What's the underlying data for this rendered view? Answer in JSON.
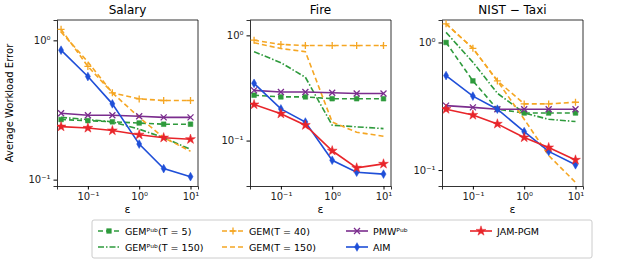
{
  "chart_data": [
    {
      "type": "line",
      "title": "Salary",
      "x_label": "ε",
      "y_label": "Average Workload Error",
      "log": true,
      "legend": "bottom",
      "x": [
        0.03,
        0.1,
        0.3,
        1,
        3,
        10
      ],
      "xlim": [
        0.025,
        14
      ],
      "ylim": [
        0.09,
        1.4
      ],
      "xticks": [
        {
          "value": 0.1,
          "label": "10⁻¹"
        },
        {
          "value": 1,
          "label": "10⁰"
        },
        {
          "value": 10,
          "label": "10¹"
        }
      ],
      "yticks": [
        {
          "value": 0.1,
          "label": "10⁻¹"
        },
        {
          "value": 1,
          "label": "10⁰"
        }
      ],
      "series": [
        {
          "name": "GEMᴾᵘᵇ(T = 5)",
          "color": "#2e9a3c",
          "marker": "square",
          "line_style": "dashed",
          "values": [
            0.27,
            0.265,
            0.26,
            0.255,
            0.25,
            0.25
          ]
        },
        {
          "name": "GEMᴾᵘᵇ(T = 150)",
          "color": "#2e9a3c",
          "marker": "none",
          "line_style": "dashdot",
          "values": [
            0.28,
            0.27,
            0.26,
            0.23,
            0.2,
            0.165
          ]
        },
        {
          "name": "GEM(T = 40)",
          "color": "#f5a623",
          "marker": "plus",
          "line_style": "dashed",
          "values": [
            1.2,
            0.65,
            0.42,
            0.38,
            0.37,
            0.37
          ]
        },
        {
          "name": "GEM(T = 150)",
          "color": "#f5a623",
          "marker": "none",
          "line_style": "dashed",
          "values": [
            1.15,
            0.7,
            0.42,
            0.28,
            0.2,
            0.16
          ]
        },
        {
          "name": "PMWᴾᵘᵇ",
          "color": "#7b2d8e",
          "marker": "x",
          "line_style": "solid",
          "values": [
            0.3,
            0.29,
            0.29,
            0.285,
            0.28,
            0.28
          ]
        },
        {
          "name": "AIM",
          "color": "#1f4fd8",
          "marker": "diamond",
          "line_style": "solid",
          "values": [
            0.85,
            0.55,
            0.35,
            0.18,
            0.12,
            0.105
          ]
        },
        {
          "name": "JAM-PGM",
          "color": "#e8252a",
          "marker": "star",
          "line_style": "solid",
          "values": [
            0.24,
            0.235,
            0.225,
            0.21,
            0.2,
            0.195
          ]
        }
      ]
    },
    {
      "type": "line",
      "title": "Fire",
      "x_label": "ε",
      "log": true,
      "x": [
        0.03,
        0.1,
        0.3,
        1,
        3,
        10
      ],
      "xlim": [
        0.025,
        14
      ],
      "ylim": [
        0.037,
        1.4
      ],
      "xticks": [
        {
          "value": 0.1,
          "label": "10⁻¹"
        },
        {
          "value": 1,
          "label": "10⁰"
        },
        {
          "value": 10,
          "label": "10¹"
        }
      ],
      "yticks": [
        {
          "value": 0.1,
          "label": "10⁻¹"
        },
        {
          "value": 1,
          "label": "10⁰"
        }
      ],
      "series": [
        {
          "name": "GEMᴾᵘᵇ(T = 5)",
          "color": "#2e9a3c",
          "marker": "square",
          "line_style": "dashed",
          "values": [
            0.27,
            0.26,
            0.26,
            0.25,
            0.25,
            0.25
          ]
        },
        {
          "name": "GEMᴾᵘᵇ(T = 150)",
          "color": "#2e9a3c",
          "marker": "none",
          "line_style": "dashdot",
          "values": [
            0.7,
            0.55,
            0.4,
            0.14,
            0.135,
            0.13
          ]
        },
        {
          "name": "GEM(T = 40)",
          "color": "#f5a623",
          "marker": "plus",
          "line_style": "dashed",
          "values": [
            0.9,
            0.82,
            0.8,
            0.8,
            0.8,
            0.8
          ]
        },
        {
          "name": "GEM(T = 150)",
          "color": "#f5a623",
          "marker": "none",
          "line_style": "dashed",
          "values": [
            0.85,
            0.75,
            0.7,
            0.15,
            0.12,
            0.11
          ]
        },
        {
          "name": "PMWᴾᵘᵇ",
          "color": "#7b2d8e",
          "marker": "x",
          "line_style": "solid",
          "values": [
            0.3,
            0.29,
            0.29,
            0.285,
            0.28,
            0.28
          ]
        },
        {
          "name": "AIM",
          "color": "#1f4fd8",
          "marker": "diamond",
          "line_style": "solid",
          "values": [
            0.35,
            0.2,
            0.15,
            0.065,
            0.05,
            0.048
          ]
        },
        {
          "name": "JAM-PGM",
          "color": "#e8252a",
          "marker": "star",
          "line_style": "solid",
          "values": [
            0.22,
            0.18,
            0.14,
            0.08,
            0.055,
            0.06
          ]
        }
      ]
    },
    {
      "type": "line",
      "title": "NIST − Taxi",
      "x_label": "ε",
      "log": true,
      "x": [
        0.03,
        0.1,
        0.3,
        1,
        3,
        10
      ],
      "xlim": [
        0.025,
        14
      ],
      "ylim": [
        0.075,
        1.5
      ],
      "xticks": [
        {
          "value": 0.1,
          "label": "10⁻¹"
        },
        {
          "value": 1,
          "label": "10⁰"
        },
        {
          "value": 10,
          "label": "10¹"
        }
      ],
      "yticks": [
        {
          "value": 0.1,
          "label": "10⁻¹"
        },
        {
          "value": 1,
          "label": "10⁰"
        }
      ],
      "series": [
        {
          "name": "GEMᴾᵘᵇ(T = 5)",
          "color": "#2e9a3c",
          "marker": "square",
          "line_style": "dashed",
          "values": [
            1.0,
            0.5,
            0.3,
            0.28,
            0.28,
            0.28
          ]
        },
        {
          "name": "GEMᴾᵘᵇ(T = 150)",
          "color": "#2e9a3c",
          "marker": "none",
          "line_style": "dashdot",
          "values": [
            1.2,
            0.7,
            0.4,
            0.28,
            0.25,
            0.24
          ]
        },
        {
          "name": "GEM(T = 40)",
          "color": "#f5a623",
          "marker": "plus",
          "line_style": "dashed",
          "values": [
            1.4,
            0.9,
            0.5,
            0.33,
            0.33,
            0.34
          ]
        },
        {
          "name": "GEM(T = 150)",
          "color": "#f5a623",
          "marker": "none",
          "line_style": "dashed",
          "values": [
            1.4,
            0.9,
            0.5,
            0.25,
            0.13,
            0.08
          ]
        },
        {
          "name": "PMWᴾᵘᵇ",
          "color": "#7b2d8e",
          "marker": "x",
          "line_style": "solid",
          "values": [
            0.32,
            0.31,
            0.3,
            0.3,
            0.3,
            0.3
          ]
        },
        {
          "name": "AIM",
          "color": "#1f4fd8",
          "marker": "diamond",
          "line_style": "solid",
          "values": [
            0.55,
            0.38,
            0.3,
            0.2,
            0.14,
            0.11
          ]
        },
        {
          "name": "JAM-PGM",
          "color": "#e8252a",
          "marker": "star",
          "line_style": "solid",
          "values": [
            0.3,
            0.27,
            0.23,
            0.18,
            0.15,
            0.12
          ]
        }
      ]
    }
  ]
}
